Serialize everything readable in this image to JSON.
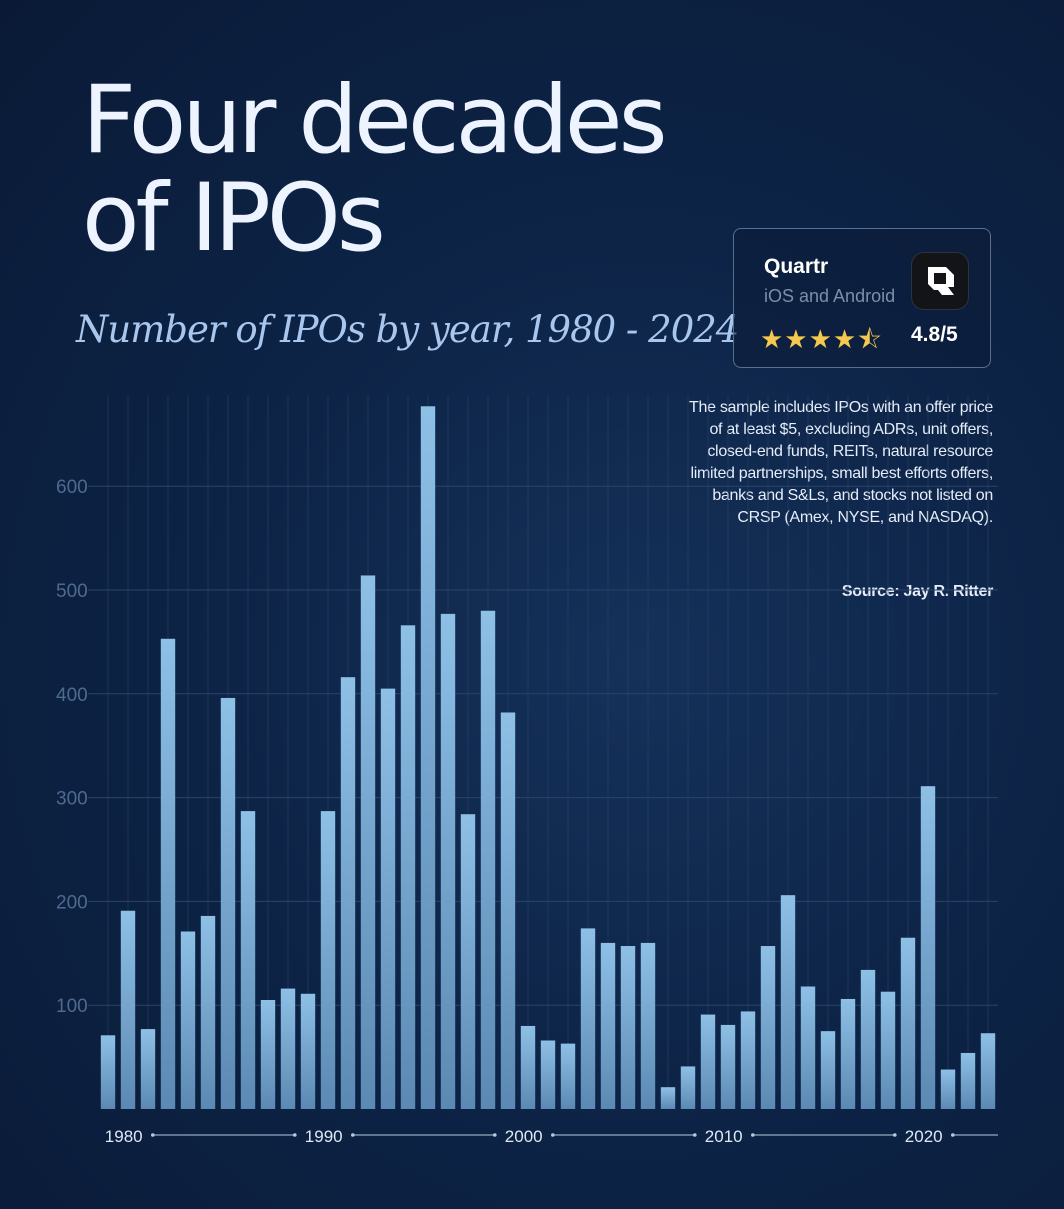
{
  "header": {
    "title_line1": "Four decades",
    "title_line2": "of IPOs",
    "subtitle": "Number of IPOs by year, 1980 - 2024"
  },
  "badge": {
    "name": "Quartr",
    "platforms": "iOS and Android",
    "stars": "★★★★⯪",
    "rating": "4.8/5"
  },
  "note": {
    "text": "The sample includes IPOs with an offer price of at least $5, excluding ADRs, unit offers, closed-end funds, REITs, natural resource limited partnerships, small best efforts offers, banks and S&Ls, and stocks not listed on CRSP (Amex, NYSE, and NASDAQ).",
    "source": "Source: Jay R. Ritter"
  },
  "colors": {
    "bar_top": "#8ec0e6",
    "bar_bottom": "#5b89b3",
    "grid": "#294468",
    "axis_line": "#b9c9de"
  },
  "chart_data": {
    "type": "bar",
    "title": "Number of IPOs by year, 1980 - 2024",
    "xlabel": "",
    "ylabel": "",
    "ylim": [
      0,
      690
    ],
    "yticks": [
      "100",
      "200",
      "300",
      "400",
      "500",
      "600"
    ],
    "xticks": [
      "1980",
      "1990",
      "2000",
      "2010",
      "2020"
    ],
    "grid": true,
    "categories": [
      1980,
      1981,
      1982,
      1983,
      1984,
      1985,
      1986,
      1987,
      1988,
      1989,
      1990,
      1991,
      1992,
      1993,
      1994,
      1995,
      1996,
      1997,
      1998,
      1999,
      2000,
      2001,
      2002,
      2003,
      2004,
      2005,
      2006,
      2007,
      2008,
      2009,
      2010,
      2011,
      2012,
      2013,
      2014,
      2015,
      2016,
      2017,
      2018,
      2019,
      2020,
      2021,
      2022,
      2023,
      2024
    ],
    "values": [
      71,
      191,
      77,
      453,
      171,
      186,
      396,
      287,
      105,
      116,
      111,
      287,
      416,
      514,
      405,
      466,
      677,
      477,
      284,
      480,
      382,
      80,
      66,
      63,
      174,
      160,
      157,
      160,
      21,
      41,
      91,
      81,
      94,
      157,
      206,
      118,
      75,
      106,
      134,
      113,
      165,
      311,
      38,
      54,
      73
    ]
  }
}
